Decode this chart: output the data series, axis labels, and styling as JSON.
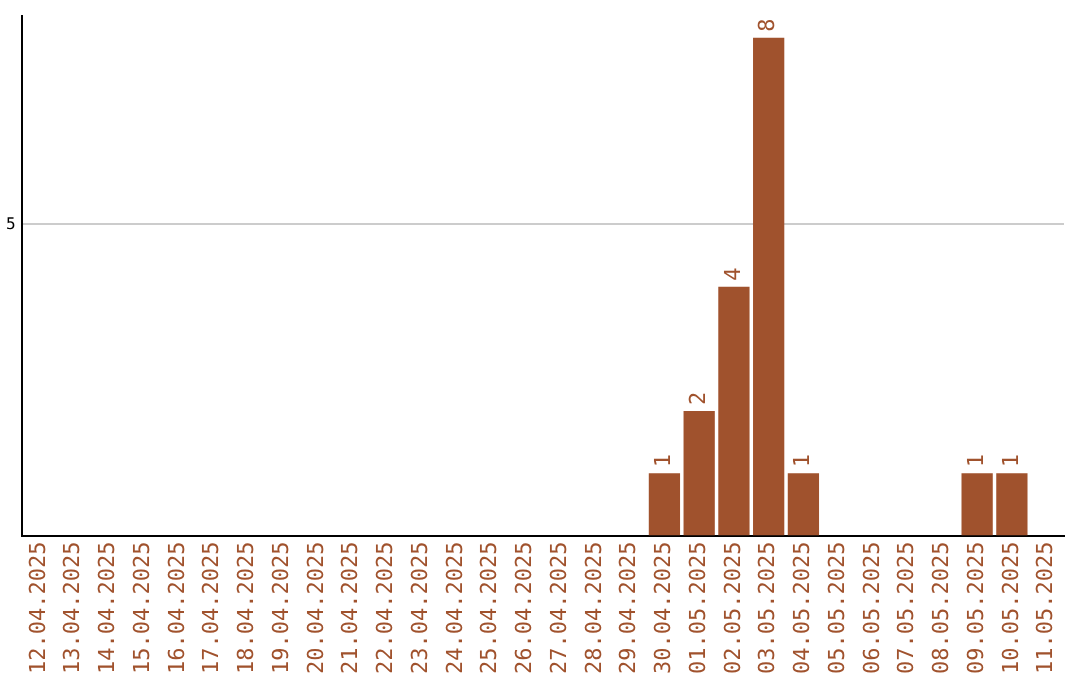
{
  "chart_data": {
    "type": "bar",
    "categories": [
      "12.04.2025",
      "13.04.2025",
      "14.04.2025",
      "15.04.2025",
      "16.04.2025",
      "17.04.2025",
      "18.04.2025",
      "19.04.2025",
      "20.04.2025",
      "21.04.2025",
      "22.04.2025",
      "23.04.2025",
      "24.04.2025",
      "25.04.2025",
      "26.04.2025",
      "27.04.2025",
      "28.04.2025",
      "29.04.2025",
      "30.04.2025",
      "01.05.2025",
      "02.05.2025",
      "03.05.2025",
      "04.05.2025",
      "05.05.2025",
      "06.05.2025",
      "07.05.2025",
      "08.05.2025",
      "09.05.2025",
      "10.05.2025",
      "11.05.2025"
    ],
    "values": [
      null,
      null,
      null,
      null,
      null,
      null,
      null,
      null,
      null,
      null,
      null,
      null,
      null,
      null,
      null,
      null,
      null,
      null,
      1,
      2,
      4,
      8,
      1,
      null,
      null,
      null,
      null,
      1,
      1,
      null
    ],
    "data_labels": true,
    "color": "#a0522d",
    "ylim": [
      0,
      8.35
    ],
    "yticks": [
      5
    ],
    "grid": "y",
    "legend": false
  }
}
